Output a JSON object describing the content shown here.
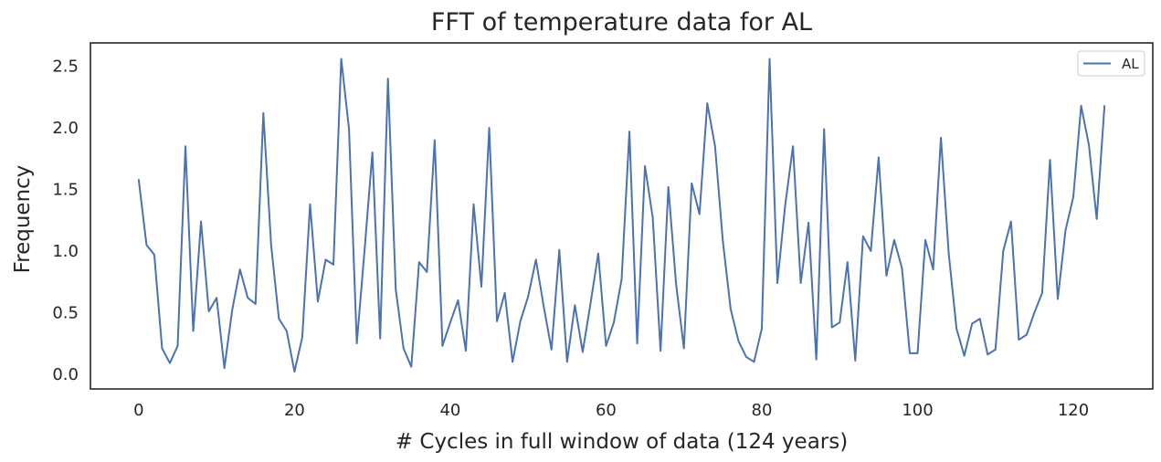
{
  "chart_data": {
    "type": "line",
    "title": "FFT of temperature data for AL",
    "xlabel": "# Cycles in full window of data (124 years)",
    "ylabel": "Frequency",
    "xlim": [
      -6.2,
      130.2
    ],
    "ylim": [
      -0.12,
      2.69
    ],
    "xticks": [
      0,
      20,
      40,
      60,
      80,
      100,
      120
    ],
    "xtick_labels": [
      "0",
      "20",
      "40",
      "60",
      "80",
      "100",
      "120"
    ],
    "yticks": [
      0.0,
      0.5,
      1.0,
      1.5,
      2.0,
      2.5
    ],
    "ytick_labels": [
      "0.0",
      "0.5",
      "1.0",
      "1.5",
      "2.0",
      "2.5"
    ],
    "grid": false,
    "legend_position": "top-right",
    "series": [
      {
        "name": "AL",
        "color": "#4c72b0",
        "x": [
          0,
          1,
          2,
          3,
          4,
          5,
          6,
          7,
          8,
          9,
          10,
          11,
          12,
          13,
          14,
          15,
          16,
          17,
          18,
          19,
          20,
          21,
          22,
          23,
          24,
          25,
          26,
          27,
          28,
          29,
          30,
          31,
          32,
          33,
          34,
          35,
          36,
          37,
          38,
          39,
          40,
          41,
          42,
          43,
          44,
          45,
          46,
          47,
          48,
          49,
          50,
          51,
          52,
          53,
          54,
          55,
          56,
          57,
          58,
          59,
          60,
          61,
          62,
          63,
          64,
          65,
          66,
          67,
          68,
          69,
          70,
          71,
          72,
          73,
          74,
          75,
          76,
          77,
          78,
          79,
          80,
          81,
          82,
          83,
          84,
          85,
          86,
          87,
          88,
          89,
          90,
          91,
          92,
          93,
          94,
          95,
          96,
          97,
          98,
          99,
          100,
          101,
          102,
          103,
          104,
          105,
          106,
          107,
          108,
          109,
          110,
          111,
          112,
          113,
          114,
          115,
          116,
          117,
          118,
          119,
          120,
          121,
          122,
          123,
          124
        ],
        "y": [
          1.58,
          1.05,
          0.97,
          0.21,
          0.09,
          0.23,
          1.85,
          0.35,
          1.24,
          0.51,
          0.62,
          0.05,
          0.52,
          0.85,
          0.62,
          0.57,
          2.12,
          1.05,
          0.45,
          0.35,
          0.02,
          0.3,
          1.38,
          0.59,
          0.93,
          0.89,
          2.56,
          1.99,
          0.25,
          1.01,
          1.8,
          0.29,
          2.4,
          0.69,
          0.21,
          0.06,
          0.91,
          0.83,
          1.9,
          0.23,
          0.42,
          0.6,
          0.19,
          1.38,
          0.71,
          2.0,
          0.43,
          0.66,
          0.1,
          0.43,
          0.63,
          0.93,
          0.55,
          0.2,
          1.01,
          0.1,
          0.56,
          0.18,
          0.57,
          0.98,
          0.23,
          0.42,
          0.77,
          1.97,
          0.25,
          1.69,
          1.27,
          0.19,
          1.52,
          0.73,
          0.21,
          1.55,
          1.3,
          2.2,
          1.85,
          1.08,
          0.53,
          0.27,
          0.14,
          0.1,
          0.37,
          2.56,
          0.74,
          1.37,
          1.85,
          0.74,
          1.23,
          0.12,
          1.99,
          0.38,
          0.42,
          0.91,
          0.11,
          1.12,
          1.0,
          1.76,
          0.8,
          1.09,
          0.86,
          0.17,
          0.17,
          1.09,
          0.85,
          1.92,
          0.98,
          0.37,
          0.15,
          0.41,
          0.45,
          0.16,
          0.2,
          1.0,
          1.24,
          0.28,
          0.32,
          0.5,
          0.66,
          1.74,
          0.61,
          1.17,
          1.44,
          2.18,
          1.86,
          1.26,
          2.18
        ]
      }
    ]
  }
}
